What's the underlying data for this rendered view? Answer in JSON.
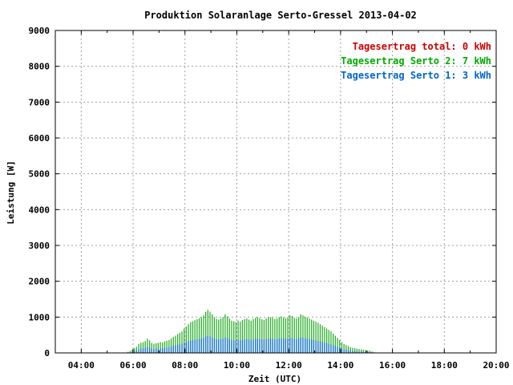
{
  "chart_data": {
    "type": "bar",
    "title": "Produktion Solaranlage Serto-Gressel 2013-04-02",
    "xlabel": "Zeit (UTC)",
    "ylabel": "Leistung [W]",
    "xlim": [
      3.0,
      20.0
    ],
    "ylim": [
      0,
      9000
    ],
    "x_ticks": [
      4,
      6,
      8,
      10,
      12,
      14,
      16,
      18,
      20
    ],
    "x_tick_labels": [
      "04:00",
      "06:00",
      "08:00",
      "10:00",
      "12:00",
      "14:00",
      "16:00",
      "18:00",
      "20:00"
    ],
    "y_ticks": [
      0,
      1000,
      2000,
      3000,
      4000,
      5000,
      6000,
      7000,
      8000,
      9000
    ],
    "y_tick_labels": [
      "0",
      "1000",
      "2000",
      "3000",
      "4000",
      "5000",
      "6000",
      "7000",
      "8000",
      "9000"
    ],
    "grid": true,
    "legend_position": "top-right",
    "legend": [
      {
        "label": "Tagesertrag total: 0 kWh",
        "color": "#cc0000"
      },
      {
        "label": "Tagesertrag Serto 2: 7 kWh",
        "color": "#00aa00"
      },
      {
        "label": "Tagesertrag Serto 1: 3 kWh",
        "color": "#0066cc"
      }
    ],
    "series": [
      {
        "name": "Serto 2",
        "color": "#2fae2f",
        "x_start": 5.8,
        "x_step": 0.0833,
        "values": [
          30,
          60,
          90,
          130,
          170,
          250,
          280,
          300,
          330,
          400,
          350,
          280,
          250,
          270,
          280,
          300,
          290,
          320,
          340,
          360,
          400,
          450,
          480,
          530,
          560,
          600,
          680,
          740,
          800,
          860,
          880,
          910,
          940,
          970,
          1000,
          1050,
          1150,
          1200,
          1150,
          1080,
          1000,
          950,
          930,
          960,
          1000,
          1080,
          1020,
          960,
          900,
          880,
          860,
          900,
          870,
          920,
          940,
          960,
          930,
          900,
          950,
          980,
          1000,
          970,
          940,
          920,
          960,
          990,
          1000,
          980,
          950,
          960,
          1000,
          1020,
          990,
          970,
          1000,
          1050,
          1030,
          980,
          960,
          1000,
          1080,
          1050,
          1010,
          990,
          960,
          930,
          900,
          870,
          840,
          800,
          760,
          720,
          680,
          640,
          600,
          540,
          480,
          420,
          360,
          300,
          250,
          220,
          190,
          160,
          140,
          130,
          120,
          110,
          100,
          90,
          80,
          70,
          60,
          40,
          20
        ]
      },
      {
        "name": "Serto 1",
        "color": "#1a72d6",
        "x_start": 5.8,
        "x_step": 0.0833,
        "values": [
          10,
          20,
          30,
          50,
          70,
          100,
          120,
          130,
          140,
          170,
          150,
          120,
          110,
          115,
          120,
          130,
          125,
          140,
          150,
          160,
          180,
          200,
          210,
          230,
          240,
          260,
          290,
          310,
          330,
          350,
          360,
          370,
          380,
          390,
          400,
          420,
          460,
          480,
          460,
          430,
          400,
          380,
          375,
          385,
          400,
          430,
          410,
          385,
          360,
          350,
          345,
          360,
          350,
          370,
          375,
          385,
          375,
          360,
          380,
          390,
          400,
          390,
          375,
          370,
          385,
          395,
          400,
          390,
          380,
          385,
          400,
          410,
          395,
          390,
          400,
          420,
          410,
          390,
          385,
          400,
          430,
          420,
          405,
          395,
          385,
          375,
          360,
          350,
          335,
          320,
          305,
          290,
          270,
          255,
          240,
          215,
          190,
          170,
          145,
          120,
          100,
          90,
          75,
          65,
          55,
          50,
          45,
          40,
          38,
          34,
          30,
          25,
          20,
          15,
          8
        ]
      }
    ]
  }
}
